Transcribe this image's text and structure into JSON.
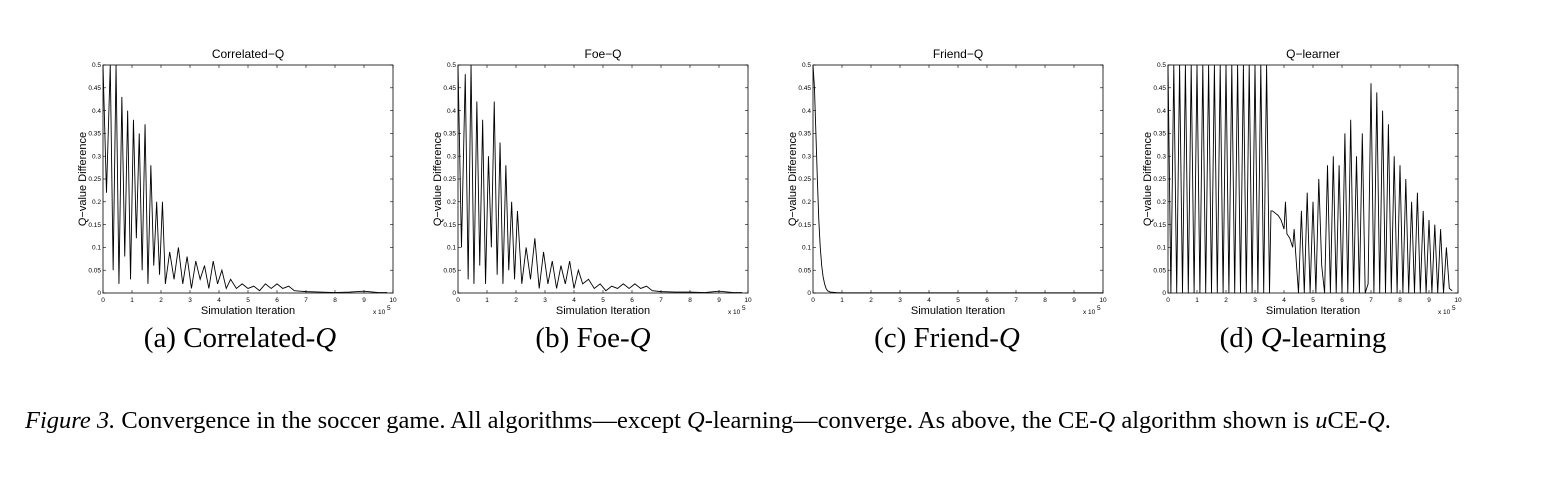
{
  "figure": {
    "label": "Figure 3.",
    "text_parts": [
      {
        "t": "Convergence in the soccer game. All algorithms—except ",
        "i": false
      },
      {
        "t": "Q",
        "i": true
      },
      {
        "t": "-learning—converge. As above, the CE-",
        "i": false
      },
      {
        "t": "Q",
        "i": true
      },
      {
        "t": " algorithm shown is ",
        "i": false
      },
      {
        "t": "u",
        "i": true
      },
      {
        "t": "CE-",
        "i": false
      },
      {
        "t": "Q",
        "i": true
      },
      {
        "t": ".",
        "i": false
      }
    ]
  },
  "subcaptions": [
    {
      "prefix": "(a) Correlated-",
      "q": "Q",
      "suffix": ""
    },
    {
      "prefix": "(b) Foe-",
      "q": "Q",
      "suffix": ""
    },
    {
      "prefix": "(c) Friend-",
      "q": "Q",
      "suffix": ""
    },
    {
      "prefix": "(d) ",
      "q": "Q",
      "suffix": "-learning"
    }
  ],
  "chart_data": [
    {
      "type": "line",
      "title": "Correlated−Q",
      "xlabel": "Simulation Iteration",
      "ylabel": "Q−value Difference",
      "x_exponent_label": "x 10",
      "x_exponent": "5",
      "xlim": [
        0,
        10
      ],
      "ylim": [
        0,
        0.5
      ],
      "xticks": [
        "0",
        "1",
        "2",
        "3",
        "4",
        "5",
        "6",
        "7",
        "8",
        "9",
        "10"
      ],
      "yticks": [
        "0",
        "0.05",
        "0.1",
        "0.15",
        "0.2",
        "0.25",
        "0.3",
        "0.35",
        "0.4",
        "0.45",
        "0.5"
      ],
      "series": [
        {
          "x": [
            0,
            0.12,
            0.25,
            0.35,
            0.45,
            0.55,
            0.65,
            0.75,
            0.85,
            0.95,
            1.05,
            1.15,
            1.25,
            1.35,
            1.45,
            1.55,
            1.65,
            1.75,
            1.85,
            1.95,
            2.05,
            2.15,
            2.3,
            2.45,
            2.6,
            2.75,
            2.9,
            3.05,
            3.2,
            3.35,
            3.5,
            3.65,
            3.8,
            3.95,
            4.1,
            4.25,
            4.4,
            4.6,
            4.8,
            5.0,
            5.2,
            5.4,
            5.6,
            5.8,
            6.0,
            6.2,
            6.4,
            6.6,
            6.8,
            7.0,
            7.5,
            8.0,
            8.5,
            9.0,
            9.5,
            9.8
          ],
          "y": [
            0.5,
            0.22,
            0.5,
            0.05,
            0.5,
            0.02,
            0.43,
            0.08,
            0.4,
            0.03,
            0.38,
            0.12,
            0.35,
            0.05,
            0.37,
            0.02,
            0.28,
            0.06,
            0.2,
            0.04,
            0.2,
            0.02,
            0.09,
            0.03,
            0.1,
            0.02,
            0.08,
            0.01,
            0.07,
            0.03,
            0.06,
            0.01,
            0.07,
            0.02,
            0.05,
            0.01,
            0.03,
            0.01,
            0.02,
            0.01,
            0.015,
            0.005,
            0.02,
            0.01,
            0.02,
            0.01,
            0.015,
            0.005,
            0.004,
            0.003,
            0.002,
            0.001,
            0.002,
            0.004,
            0.001,
            0.001
          ]
        }
      ]
    },
    {
      "type": "line",
      "title": "Foe−Q",
      "xlabel": "Simulation Iteration",
      "ylabel": "Q−value Difference",
      "x_exponent_label": "x 10",
      "x_exponent": "5",
      "xlim": [
        0,
        10
      ],
      "ylim": [
        0,
        0.5
      ],
      "xticks": [
        "0",
        "1",
        "2",
        "3",
        "4",
        "5",
        "6",
        "7",
        "8",
        "9",
        "10"
      ],
      "yticks": [
        "0",
        "0.05",
        "0.1",
        "0.15",
        "0.2",
        "0.25",
        "0.3",
        "0.35",
        "0.4",
        "0.45",
        "0.5"
      ],
      "series": [
        {
          "x": [
            0,
            0.12,
            0.25,
            0.35,
            0.45,
            0.55,
            0.65,
            0.75,
            0.85,
            0.95,
            1.05,
            1.15,
            1.25,
            1.35,
            1.45,
            1.55,
            1.65,
            1.75,
            1.85,
            1.95,
            2.05,
            2.2,
            2.35,
            2.5,
            2.65,
            2.8,
            2.95,
            3.1,
            3.25,
            3.4,
            3.55,
            3.7,
            3.85,
            4.0,
            4.15,
            4.3,
            4.5,
            4.7,
            4.9,
            5.1,
            5.3,
            5.5,
            5.7,
            5.9,
            6.1,
            6.3,
            6.5,
            6.7,
            7.0,
            7.5,
            8.0,
            8.5,
            9.0,
            9.5,
            9.8
          ],
          "y": [
            0.5,
            0.1,
            0.48,
            0.03,
            0.5,
            0.02,
            0.42,
            0.06,
            0.38,
            0.02,
            0.3,
            0.1,
            0.42,
            0.04,
            0.33,
            0.02,
            0.28,
            0.05,
            0.2,
            0.03,
            0.18,
            0.02,
            0.1,
            0.03,
            0.12,
            0.01,
            0.09,
            0.02,
            0.07,
            0.01,
            0.06,
            0.02,
            0.07,
            0.01,
            0.05,
            0.02,
            0.03,
            0.01,
            0.02,
            0.005,
            0.015,
            0.01,
            0.02,
            0.01,
            0.02,
            0.01,
            0.015,
            0.005,
            0.003,
            0.002,
            0.002,
            0.001,
            0.004,
            0.001,
            0.001
          ]
        }
      ]
    },
    {
      "type": "line",
      "title": "Friend−Q",
      "xlabel": "Simulation Iteration",
      "ylabel": "Q−value Difference",
      "x_exponent_label": "x 10",
      "x_exponent": "5",
      "xlim": [
        0,
        10
      ],
      "ylim": [
        0,
        0.5
      ],
      "xticks": [
        "0",
        "1",
        "2",
        "3",
        "4",
        "5",
        "6",
        "7",
        "8",
        "9",
        "10"
      ],
      "yticks": [
        "0",
        "0.05",
        "0.1",
        "0.15",
        "0.2",
        "0.25",
        "0.3",
        "0.35",
        "0.4",
        "0.45",
        "0.5"
      ],
      "series": [
        {
          "x": [
            0,
            0.05,
            0.1,
            0.15,
            0.2,
            0.25,
            0.3,
            0.35,
            0.4,
            0.45,
            0.5,
            0.6,
            0.8,
            1.0,
            10
          ],
          "y": [
            0.5,
            0.45,
            0.35,
            0.25,
            0.16,
            0.1,
            0.06,
            0.035,
            0.02,
            0.01,
            0.005,
            0.002,
            0.001,
            0.0005,
            0.0005
          ]
        }
      ]
    },
    {
      "type": "line",
      "title": "Q−learner",
      "xlabel": "Simulation Iteration",
      "ylabel": "Q−value Difference",
      "x_exponent_label": "x 10",
      "x_exponent": "5",
      "xlim": [
        0,
        10
      ],
      "ylim": [
        0,
        0.5
      ],
      "xticks": [
        "0",
        "1",
        "2",
        "3",
        "4",
        "5",
        "6",
        "7",
        "8",
        "9",
        "10"
      ],
      "yticks": [
        "0",
        "0.05",
        "0.1",
        "0.15",
        "0.2",
        "0.25",
        "0.3",
        "0.35",
        "0.4",
        "0.45",
        "0.5"
      ],
      "series": [
        {
          "x": [
            0,
            0.1,
            0.2,
            0.3,
            0.4,
            0.5,
            0.6,
            0.7,
            0.8,
            0.9,
            1.0,
            1.1,
            1.2,
            1.3,
            1.4,
            1.5,
            1.6,
            1.7,
            1.8,
            1.9,
            2.0,
            2.1,
            2.2,
            2.3,
            2.4,
            2.5,
            2.6,
            2.7,
            2.8,
            2.9,
            3.0,
            3.1,
            3.2,
            3.3,
            3.4,
            3.5,
            3.55,
            3.6,
            3.7,
            3.8,
            3.9,
            4.0,
            4.05,
            4.1,
            4.2,
            4.3,
            4.35,
            4.4,
            4.5,
            4.6,
            4.7,
            4.8,
            4.9,
            5.0,
            5.1,
            5.2,
            5.3,
            5.4,
            5.5,
            5.6,
            5.7,
            5.8,
            5.9,
            6.0,
            6.1,
            6.2,
            6.3,
            6.4,
            6.5,
            6.6,
            6.7,
            6.8,
            6.9,
            7.0,
            7.1,
            7.2,
            7.3,
            7.4,
            7.5,
            7.6,
            7.7,
            7.8,
            7.9,
            8.0,
            8.1,
            8.2,
            8.3,
            8.4,
            8.5,
            8.6,
            8.7,
            8.8,
            8.9,
            9.0,
            9.1,
            9.2,
            9.3,
            9.4,
            9.5,
            9.6,
            9.7,
            9.8
          ],
          "y": [
            0.5,
            0.0,
            0.5,
            0.0,
            0.5,
            0.0,
            0.5,
            0.0,
            0.5,
            0.0,
            0.5,
            0.0,
            0.5,
            0.0,
            0.5,
            0.0,
            0.5,
            0.0,
            0.5,
            0.0,
            0.5,
            0.0,
            0.5,
            0.0,
            0.5,
            0.0,
            0.5,
            0.0,
            0.5,
            0.0,
            0.5,
            0.0,
            0.5,
            0.0,
            0.5,
            0.0,
            0.18,
            0.18,
            0.175,
            0.17,
            0.16,
            0.14,
            0.2,
            0.13,
            0.12,
            0.1,
            0.14,
            0.09,
            0.0,
            0.18,
            0.0,
            0.22,
            0.0,
            0.2,
            0.0,
            0.25,
            0.06,
            0.0,
            0.28,
            0.0,
            0.3,
            0.0,
            0.28,
            0.0,
            0.35,
            0.0,
            0.38,
            0.0,
            0.3,
            0.0,
            0.35,
            0.0,
            0.02,
            0.46,
            0.0,
            0.44,
            0.0,
            0.4,
            0.0,
            0.37,
            0.0,
            0.3,
            0.0,
            0.28,
            0.0,
            0.25,
            0.0,
            0.2,
            0.0,
            0.22,
            0.0,
            0.18,
            0.0,
            0.16,
            0.0,
            0.15,
            0.0,
            0.14,
            0.0,
            0.1,
            0.01,
            0.005
          ]
        }
      ]
    }
  ]
}
